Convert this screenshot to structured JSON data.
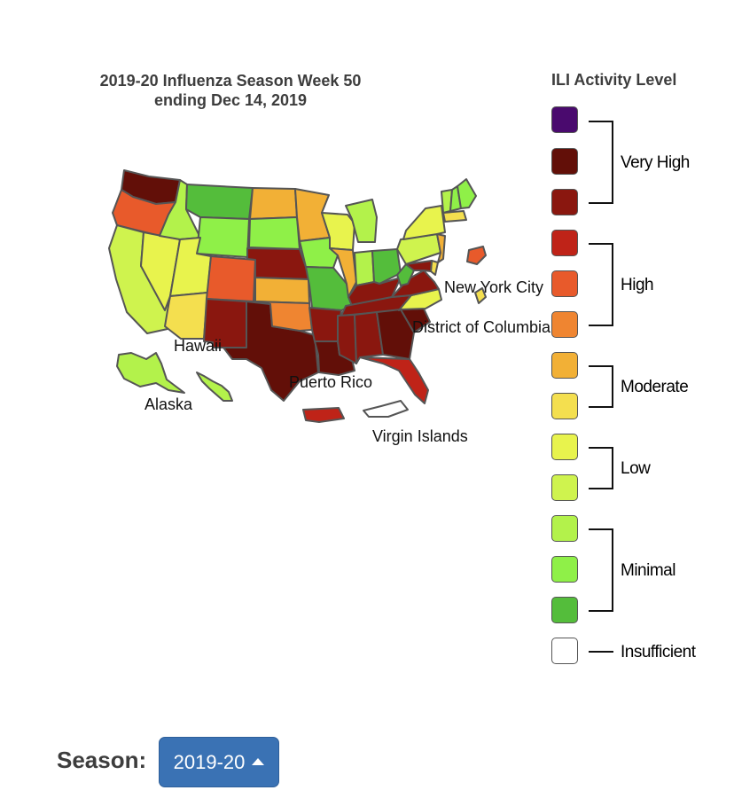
{
  "title": {
    "line1": "2019-20 Influenza Season Week 50",
    "line2": "ending Dec 14, 2019"
  },
  "map_labels": {
    "new_york_city": "New York City",
    "district_of_columbia": "District of Columbia",
    "hawaii": "Hawaii",
    "alaska": "Alaska",
    "puerto_rico": "Puerto Rico",
    "virgin_islands": "Virgin Islands"
  },
  "legend": {
    "title": "ILI Activity Level",
    "levels": [
      {
        "level": 13,
        "color": "#4a0a6e"
      },
      {
        "level": 12,
        "color": "#620f08"
      },
      {
        "level": 11,
        "color": "#8a170f"
      },
      {
        "level": 10,
        "color": "#bf2318"
      },
      {
        "level": 9,
        "color": "#e85a2b"
      },
      {
        "level": 8,
        "color": "#ef8531"
      },
      {
        "level": 7,
        "color": "#f2b036"
      },
      {
        "level": 6,
        "color": "#f4df4f"
      },
      {
        "level": 5,
        "color": "#e8f34d"
      },
      {
        "level": 4,
        "color": "#cff34e"
      },
      {
        "level": 3,
        "color": "#b3f24b"
      },
      {
        "level": 2,
        "color": "#8ff048"
      },
      {
        "level": 1,
        "color": "#54bd3b"
      },
      {
        "level": 0,
        "color": "#ffffff"
      }
    ],
    "groups": {
      "very_high": "Very High",
      "high": "High",
      "moderate": "Moderate",
      "low": "Low",
      "minimal": "Minimal",
      "insufficient": "Insufficient"
    }
  },
  "state_activity_colors": {
    "WA": "#620f08",
    "OR": "#e85a2b",
    "CA": "#cff34e",
    "NV": "#e8f34d",
    "ID": "#b3f24b",
    "MT": "#54bd3b",
    "WY": "#8ff048",
    "UT": "#e8f34d",
    "AZ": "#f4df4f",
    "CO": "#e85a2b",
    "NM": "#8a170f",
    "TX": "#620f08",
    "ND": "#f2b036",
    "SD": "#8ff048",
    "NE": "#8a170f",
    "KS": "#f2b036",
    "OK": "#ef8531",
    "MN": "#f2b036",
    "IA": "#8ff048",
    "MO": "#54bd3b",
    "AR": "#8a170f",
    "LA": "#620f08",
    "WI": "#e8f34d",
    "IL": "#f2b036",
    "MI": "#b3f24b",
    "IN": "#b3f24b",
    "OH": "#54bd3b",
    "KY": "#8a170f",
    "TN": "#8a170f",
    "MS": "#8a170f",
    "AL": "#8a170f",
    "GA": "#620f08",
    "FL": "#bf2318",
    "SC": "#620f08",
    "NC": "#e8f34d",
    "VA": "#8a170f",
    "WV": "#54bd3b",
    "PA": "#cff34e",
    "NY": "#e8f34d",
    "VT": "#b3f24b",
    "NH": "#8ff048",
    "ME": "#8ff048",
    "MA": "#f4df4f",
    "NJ": "#f2b036",
    "DE": "#f4df4f",
    "MD": "#8a170f",
    "DC": "#f4df4f",
    "NYC": "#e85a2b",
    "AK": "#b3f24b",
    "HI": "#b3f24b",
    "PR": "#bf2318",
    "VI": "#ffffff"
  },
  "season": {
    "label": "Season:",
    "selected": "2019-20"
  }
}
